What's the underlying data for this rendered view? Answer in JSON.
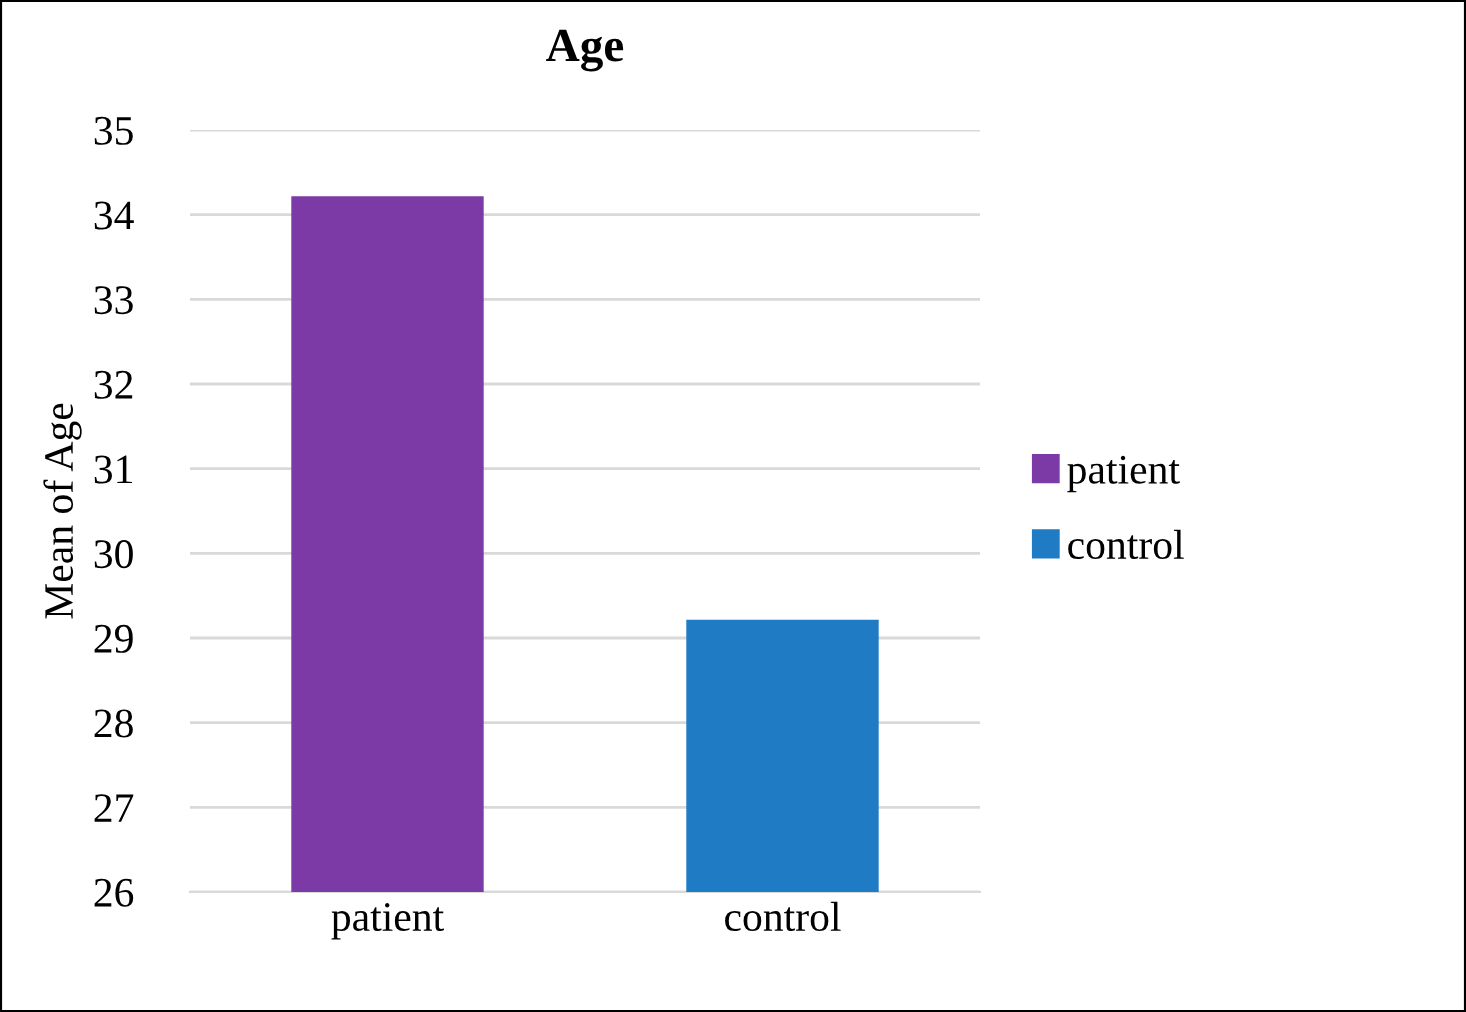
{
  "chart_data": {
    "type": "bar",
    "title": "Age",
    "ylabel": "Mean of Age",
    "categories": [
      "patient",
      "control"
    ],
    "series": [
      {
        "name": "patient",
        "color": "#7b3aa6",
        "values": [
          34.2,
          null
        ]
      },
      {
        "name": "control",
        "color": "#1f7cc4",
        "values": [
          null,
          29.2
        ]
      }
    ],
    "ylim": [
      26,
      35
    ],
    "yticks": [
      26,
      27,
      28,
      29,
      30,
      31,
      32,
      33,
      34,
      35
    ],
    "grid": "y",
    "legend": "right"
  }
}
